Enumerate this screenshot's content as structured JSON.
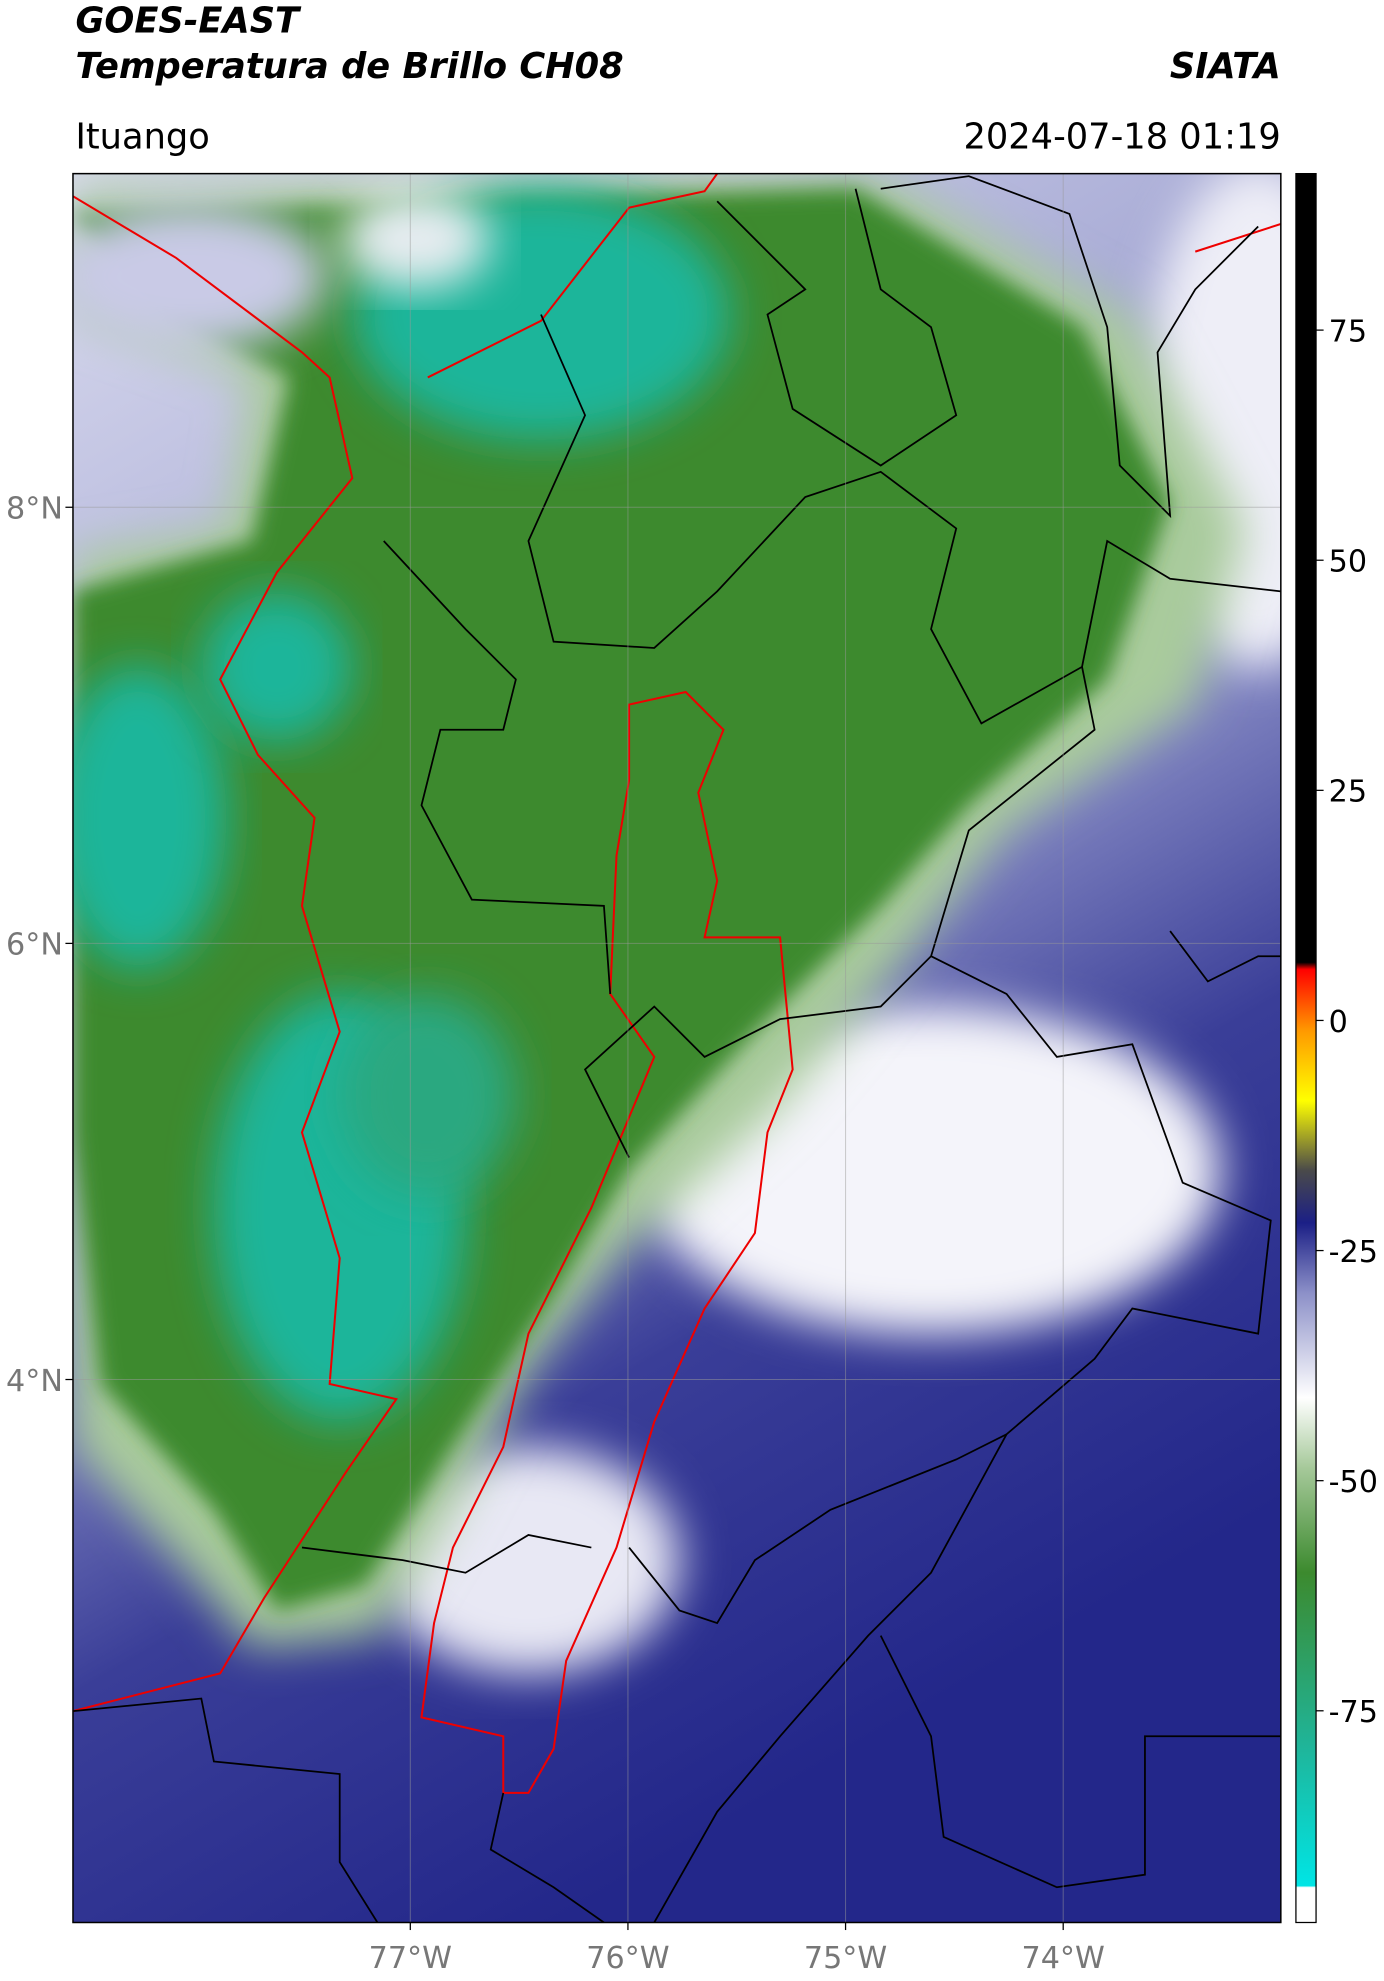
{
  "header": {
    "title": "GOES-EAST",
    "subtitle": "Temperatura de Brillo CH08",
    "source": "SIATA",
    "location": "Ituango",
    "datetime": "2024-07-18 01:19"
  },
  "map": {
    "lon_range": [
      -78.55,
      -73.0
    ],
    "lat_range": [
      1.51,
      9.53
    ],
    "lon_ticks": [
      {
        "value": -77,
        "label": "77°W"
      },
      {
        "value": -76,
        "label": "76°W"
      },
      {
        "value": -75,
        "label": "75°W"
      },
      {
        "value": -74,
        "label": "74°W"
      }
    ],
    "lat_ticks": [
      {
        "value": 8,
        "label": "8°N"
      },
      {
        "value": 6,
        "label": "6°N"
      },
      {
        "value": 4,
        "label": "4°N"
      }
    ],
    "grid": true
  },
  "colorbar": {
    "range": [
      -98,
      92
    ],
    "ticks": [
      75,
      50,
      25,
      0,
      -25,
      -50,
      -75
    ]
  }
}
